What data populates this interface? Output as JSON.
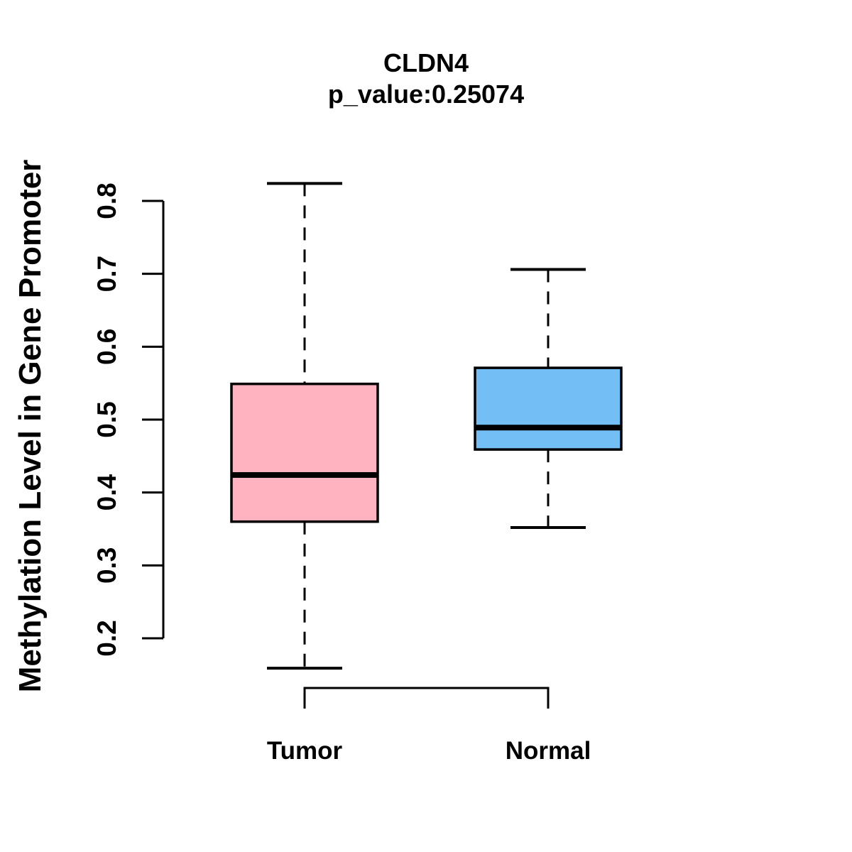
{
  "page": {
    "background_color": "#ffffff"
  },
  "chart_data": {
    "type": "boxplot",
    "title": "CLDN4",
    "subtitle": "p_value:0.25074",
    "p_value": 0.25074,
    "gene": "CLDN4",
    "xlabel": "",
    "ylabel": "Methylation Level in Gene Promoter",
    "ylim": [
      0.2,
      0.8
    ],
    "y_ticks": [
      0.2,
      0.3,
      0.4,
      0.5,
      0.6,
      0.7,
      0.8
    ],
    "y_tick_labels": [
      "0.2",
      "0.3",
      "0.4",
      "0.5",
      "0.6",
      "0.7",
      "0.8"
    ],
    "grid": false,
    "legend": "none",
    "orientation": "vertical",
    "whisker_style": "dashed",
    "groups": [
      {
        "label": "Tumor",
        "color": "#FFB3C1",
        "whisker_low": 0.159,
        "q1": 0.36,
        "median": 0.424,
        "q3": 0.549,
        "whisker_high": 0.824
      },
      {
        "label": "Normal",
        "color": "#73BEF5",
        "whisker_low": 0.352,
        "q1": 0.459,
        "median": 0.489,
        "q3": 0.571,
        "whisker_high": 0.706
      }
    ],
    "colors": {
      "axis": "#000000",
      "box_border": "#000000",
      "median": "#000000",
      "text": "#000000",
      "tumor_fill": "#FFB3C1",
      "normal_fill": "#73BEF5"
    }
  }
}
